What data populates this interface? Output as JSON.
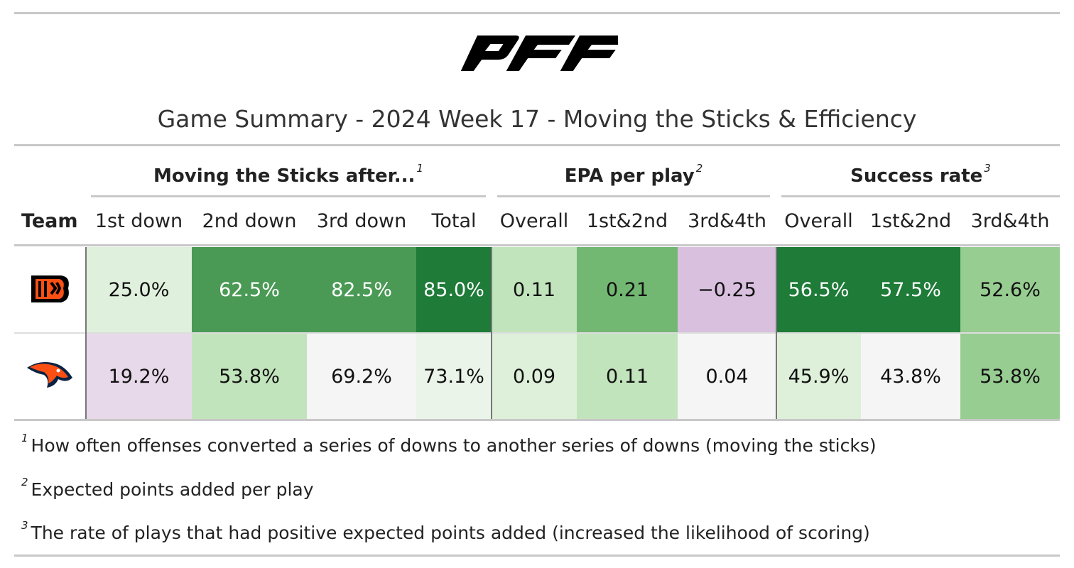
{
  "title": "Game Summary - 2024 Week 17 - Moving the Sticks & Efficiency",
  "spanners": [
    {
      "label": "Moving the Sticks after...",
      "note": "1"
    },
    {
      "label": "EPA per play",
      "note": "2"
    },
    {
      "label": "Success rate",
      "note": "3"
    }
  ],
  "columns": [
    "Team",
    "1st down",
    "2nd down",
    "3rd down",
    "Total",
    "Overall",
    "1st&2nd",
    "3rd&4th",
    "Overall",
    "1st&2nd",
    "3rd&4th"
  ],
  "rows": [
    {
      "cells": [
        "25.0%",
        "62.5%",
        "82.5%",
        "85.0%",
        "0.11",
        "0.21",
        "−0.25",
        "56.5%",
        "57.5%",
        "52.6%"
      ],
      "colors": [
        "#dff0dc",
        "#4a9a55",
        "#4a9a55",
        "#1e7b38",
        "#c2e4bc",
        "#72b772",
        "#d8c0de",
        "#1e7b38",
        "#1e7b38",
        "#98cd92"
      ]
    },
    {
      "cells": [
        "19.2%",
        "53.8%",
        "69.2%",
        "73.1%",
        "0.09",
        "0.11",
        "0.04",
        "45.9%",
        "43.8%",
        "53.8%"
      ],
      "colors": [
        "#e8d9ea",
        "#c2e4bc",
        "#f5f5f5",
        "#eaf4e8",
        "#def0da",
        "#c2e4bc",
        "#f5f5f5",
        "#def0da",
        "#f5f5f5",
        "#98cd92"
      ]
    }
  ],
  "footnotes": [
    {
      "mark": "1",
      "text": "How often offenses converted a series of downs to another series of downs (moving the sticks)"
    },
    {
      "mark": "2",
      "text": "Expected points added per play"
    },
    {
      "mark": "3",
      "text": "The rate of plays that had positive expected points added (increased the likelihood of scoring)"
    }
  ]
}
